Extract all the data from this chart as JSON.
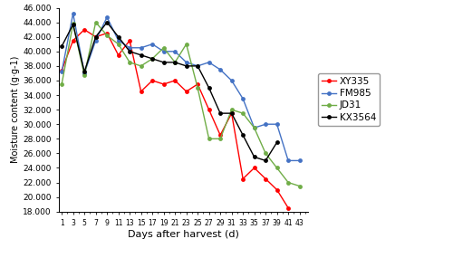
{
  "xlabel": "Days after harvest (d)",
  "ylabel": "Moisture content (g·g-1)",
  "days": [
    1,
    3,
    5,
    7,
    9,
    11,
    13,
    15,
    17,
    19,
    21,
    23,
    25,
    27,
    29,
    31,
    33,
    35,
    37,
    39,
    41,
    43
  ],
  "XY335": [
    37400,
    41500,
    43000,
    42000,
    42500,
    39500,
    41500,
    34500,
    36000,
    35500,
    36000,
    34500,
    35500,
    32000,
    28500,
    31500,
    22500,
    24000,
    22500,
    21000,
    18500,
    null
  ],
  "FM985": [
    37200,
    45200,
    37000,
    41500,
    44700,
    41500,
    40500,
    40500,
    41000,
    40000,
    40000,
    38500,
    38000,
    38500,
    37500,
    36000,
    33500,
    29500,
    30000,
    30000,
    25000,
    25000
  ],
  "JD31": [
    35500,
    43800,
    36700,
    44000,
    42200,
    41000,
    38500,
    38000,
    39000,
    40500,
    38500,
    41000,
    35000,
    28000,
    28000,
    32000,
    31500,
    29500,
    26000,
    24000,
    22000,
    21500
  ],
  "KX3564": [
    40700,
    43700,
    37200,
    42000,
    44000,
    42000,
    40000,
    39500,
    39000,
    38500,
    38500,
    38000,
    38000,
    35000,
    31500,
    31500,
    28500,
    25500,
    25000,
    27500,
    null,
    null
  ],
  "colors": {
    "XY335": "#FF0000",
    "FM985": "#4472C4",
    "JD31": "#70AD47",
    "KX3564": "#000000"
  },
  "ylim": [
    18000,
    46000
  ],
  "yticks": [
    18000,
    20000,
    22000,
    24000,
    26000,
    28000,
    30000,
    32000,
    34000,
    36000,
    38000,
    40000,
    42000,
    44000,
    46000
  ],
  "background_color": "#FFFFFF"
}
